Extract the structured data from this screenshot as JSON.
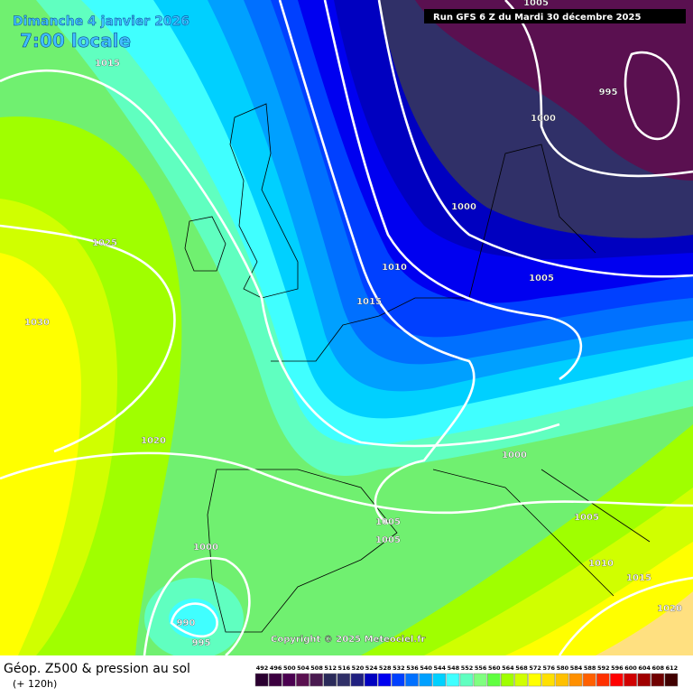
{
  "header": {
    "date": "Dimanche 4 janvier 2026",
    "time": "7:00 locale",
    "run": "Run GFS 6 Z du Mardi 30 décembre 2025"
  },
  "isobar_labels": [
    1005,
    995,
    1000,
    1015,
    1000,
    1025,
    1010,
    1005,
    1015,
    1030,
    1020,
    1000,
    1005,
    1005,
    1005,
    1000,
    1010,
    1015,
    1020,
    990,
    995
  ],
  "copyright": "Copyright © 2025 Meteociel.fr",
  "legend": {
    "title": "Géop. Z500 & pression au sol",
    "lead": "(+ 120h)",
    "scale": [
      492,
      496,
      500,
      504,
      508,
      512,
      516,
      520,
      524,
      528,
      532,
      536,
      540,
      544,
      548,
      552,
      556,
      560,
      564,
      568,
      572,
      576,
      580,
      584,
      588,
      592,
      596,
      600,
      604,
      608,
      612
    ],
    "colors": [
      "#2a0030",
      "#3c0040",
      "#4b0050",
      "#5a1050",
      "#4a1a50",
      "#2a2a5a",
      "#303068",
      "#202080",
      "#0000c0",
      "#0000f0",
      "#0040ff",
      "#0070ff",
      "#00a0ff",
      "#00d0ff",
      "#40ffff",
      "#60ffc0",
      "#80ff80",
      "#60ff40",
      "#a0ff00",
      "#d0ff00",
      "#ffff00",
      "#ffe000",
      "#ffc000",
      "#ff9000",
      "#ff6000",
      "#ff3000",
      "#ff0000",
      "#d00000",
      "#a00000",
      "#700000",
      "#400000"
    ]
  }
}
